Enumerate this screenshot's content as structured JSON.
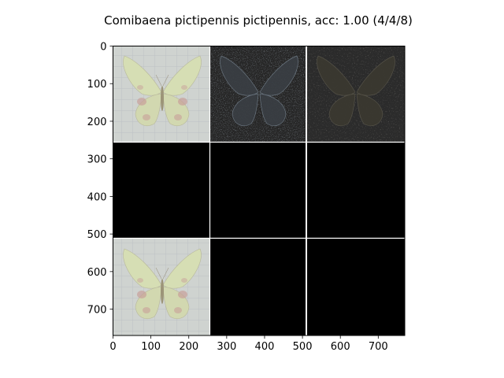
{
  "title": "Comibaena pictipennis pictipennis, acc: 1.00 (4/4/8)",
  "axes": {
    "x_ticks": [
      "0",
      "100",
      "200",
      "300",
      "400",
      "500",
      "600",
      "700"
    ],
    "y_ticks": [
      "0",
      "100",
      "200",
      "300",
      "400",
      "500",
      "600",
      "700"
    ],
    "x_range": [
      0,
      770
    ],
    "y_range": [
      0,
      770
    ]
  },
  "grid": {
    "rows": 3,
    "cols": 3,
    "tile_size": 256,
    "tiles": [
      {
        "row": 0,
        "col": 0,
        "content": "butterfly-photo"
      },
      {
        "row": 0,
        "col": 1,
        "content": "saliency-map-bright"
      },
      {
        "row": 0,
        "col": 2,
        "content": "saliency-map-dim"
      },
      {
        "row": 1,
        "col": 0,
        "content": "blank"
      },
      {
        "row": 1,
        "col": 1,
        "content": "blank"
      },
      {
        "row": 1,
        "col": 2,
        "content": "blank"
      },
      {
        "row": 2,
        "col": 0,
        "content": "butterfly-photo"
      },
      {
        "row": 2,
        "col": 1,
        "content": "blank"
      },
      {
        "row": 2,
        "col": 2,
        "content": "blank"
      }
    ]
  },
  "colors": {
    "wing": "#d8e0b8",
    "wing_spot": "#c89890",
    "photo_bg": "#cfd3d0",
    "blank": "#000000",
    "dark_tile": "#2a2a2a"
  }
}
